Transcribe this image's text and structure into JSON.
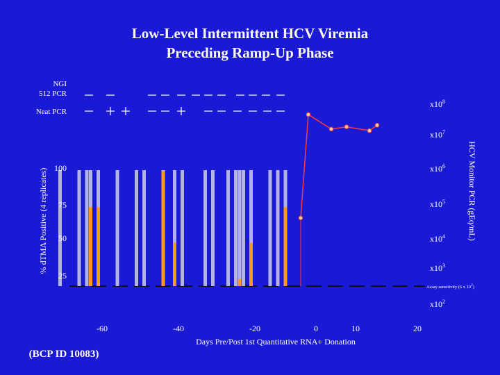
{
  "title_line1": "Low-Level Intermittent HCV Viremia",
  "title_line2": "Preceding Ramp-Up Phase",
  "footer_id": "(BCP ID 10083)",
  "colors": {
    "background": "#1a1ad6",
    "negative_bar": "#b3b3e6",
    "positive_bar": "#ff9a1a",
    "line": "#ff3b3b",
    "marker_fill": "#ffd0a0",
    "text": "#ffffff"
  },
  "chart_data": {
    "type": "bar",
    "xlabel": "Days Pre/Post 1st Quantitative RNA+ Donation",
    "ylabel_left": "% dTMA Positive (4 replicates)",
    "ylabel_right": "HCV Monitor PCR (gEq/mL)",
    "x_ticks": [
      "-60",
      "-40",
      "-20",
      "0",
      "10",
      "20"
    ],
    "left_ticks": [
      "100",
      "75",
      "50",
      "25"
    ],
    "right_ticks": [
      {
        "base": "x10",
        "exp": "8"
      },
      {
        "base": "x10",
        "exp": "7"
      },
      {
        "base": "x10",
        "exp": "6"
      },
      {
        "base": "x10",
        "exp": "5"
      },
      {
        "base": "x10",
        "exp": "4"
      },
      {
        "base": "x10",
        "exp": "3"
      },
      {
        "base": "x10",
        "exp": "2"
      }
    ],
    "sensitivity_label": {
      "text": "Assay sensitivity (6 x 10",
      "exp": "2",
      "suffix": ")"
    },
    "ylim_left": [
      0,
      100
    ],
    "bars": [
      {
        "day": -67,
        "gray": 100,
        "orange": 0
      },
      {
        "day": -62,
        "gray": 100,
        "orange": 0
      },
      {
        "day": -60,
        "gray": 100,
        "orange": 0
      },
      {
        "day": -59,
        "gray": 75,
        "orange": 75
      },
      {
        "day": -57,
        "gray": 75,
        "orange": 75
      },
      {
        "day": -52,
        "gray": 100,
        "orange": 0
      },
      {
        "day": -47,
        "gray": 100,
        "orange": 0
      },
      {
        "day": -45,
        "gray": 100,
        "orange": 0
      },
      {
        "day": -40,
        "gray": 100,
        "orange": 100
      },
      {
        "day": -37,
        "gray": 100,
        "orange": 50
      },
      {
        "day": -35,
        "gray": 100,
        "orange": 0
      },
      {
        "day": -29,
        "gray": 100,
        "orange": 0
      },
      {
        "day": -27,
        "gray": 100,
        "orange": 0
      },
      {
        "day": -23,
        "gray": 100,
        "orange": 0
      },
      {
        "day": -21,
        "gray": 100,
        "orange": 0
      },
      {
        "day": -20,
        "gray": 100,
        "orange": 25
      },
      {
        "day": -19,
        "gray": 100,
        "orange": 0
      },
      {
        "day": -17,
        "gray": 50,
        "orange": 50
      },
      {
        "day": -12,
        "gray": 100,
        "orange": 0
      },
      {
        "day": -10,
        "gray": 100,
        "orange": 0
      },
      {
        "day": -8,
        "gray": 75,
        "orange": 75
      }
    ],
    "pcr_series": {
      "name": "HCV Monitor PCR",
      "days": [
        -4,
        -2,
        4,
        8,
        14,
        16
      ],
      "log10": [
        4.65,
        7.85,
        7.4,
        7.47,
        7.35,
        7.52
      ]
    },
    "ngi_row": {
      "label_line1": "NGI",
      "label_line2": "512 PCR",
      "marks": [
        "-",
        "-",
        "-",
        "-",
        "-",
        "-",
        "-",
        "-",
        "-",
        "-",
        "-",
        "-"
      ]
    },
    "neat_row": {
      "label": "Neat PCR",
      "marks": [
        "-",
        "+",
        "+",
        "-",
        "-",
        "+",
        "-",
        "-",
        "-",
        "-",
        "-",
        "-"
      ]
    }
  }
}
